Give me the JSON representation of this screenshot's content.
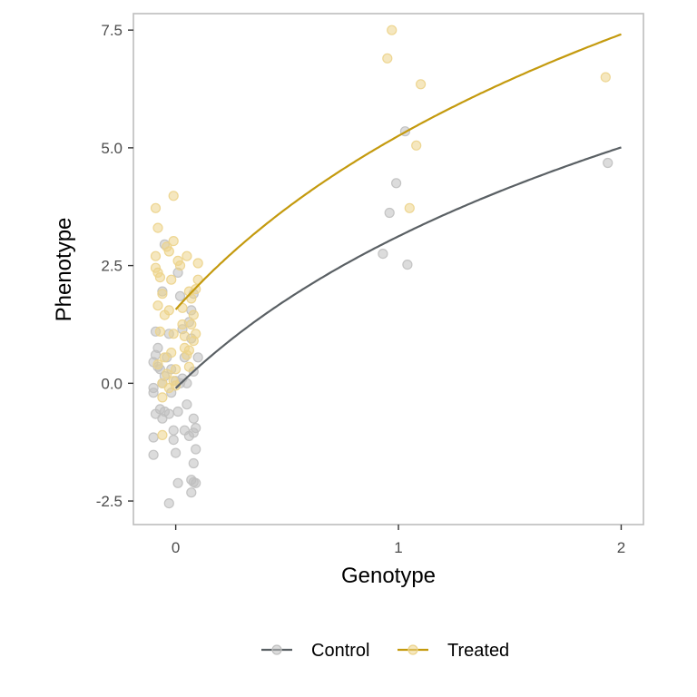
{
  "chart_data": {
    "type": "scatter",
    "title": "",
    "xlabel": "Genotype",
    "ylabel": "Phenotype",
    "xlim": [
      -0.19,
      2.1
    ],
    "ylim": [
      -3.0,
      7.85
    ],
    "x_ticks": [
      0,
      1,
      2
    ],
    "x_tick_labels": [
      "0",
      "1",
      "2"
    ],
    "y_ticks": [
      -2.5,
      0,
      2.5,
      5,
      7.5
    ],
    "y_tick_labels": [
      "-2.5",
      "0.0",
      "2.5",
      "5.0",
      "7.5"
    ],
    "grid": false,
    "legend_position": "bottom",
    "series": [
      {
        "name": "Control",
        "color": "#5a6064",
        "point_color": "#bfbfbf",
        "fit": "log",
        "points": [
          [
            -0.09,
            1.1
          ],
          [
            -0.09,
            0.6
          ],
          [
            -0.1,
            0.45
          ],
          [
            -0.08,
            0.35
          ],
          [
            -0.1,
            -0.1
          ],
          [
            -0.1,
            -0.2
          ],
          [
            -0.07,
            -0.55
          ],
          [
            -0.09,
            -0.65
          ],
          [
            -0.06,
            -0.75
          ],
          [
            -0.05,
            -0.6
          ],
          [
            -0.03,
            -0.65
          ],
          [
            -0.1,
            -1.15
          ],
          [
            -0.1,
            -1.52
          ],
          [
            -0.06,
            1.95
          ],
          [
            -0.05,
            2.95
          ],
          [
            -0.03,
            1.05
          ],
          [
            -0.04,
            0.55
          ],
          [
            -0.02,
            0.3
          ],
          [
            -0.05,
            0.15
          ],
          [
            -0.06,
            0.0
          ],
          [
            -0.02,
            -0.2
          ],
          [
            -0.01,
            -1.0
          ],
          [
            -0.01,
            -1.2
          ],
          [
            0.0,
            -1.48
          ],
          [
            -0.03,
            -2.55
          ],
          [
            0.01,
            -2.12
          ],
          [
            0.01,
            -0.6
          ],
          [
            0.02,
            0.0
          ],
          [
            0.03,
            0.1
          ],
          [
            0.04,
            0.55
          ],
          [
            0.03,
            1.15
          ],
          [
            0.02,
            1.85
          ],
          [
            0.01,
            2.35
          ],
          [
            0.05,
            -0.45
          ],
          [
            0.04,
            -1.0
          ],
          [
            0.06,
            -1.12
          ],
          [
            0.07,
            -2.05
          ],
          [
            0.07,
            -2.32
          ],
          [
            0.08,
            -2.1
          ],
          [
            0.09,
            -2.12
          ],
          [
            0.08,
            -1.7
          ],
          [
            0.09,
            -1.4
          ],
          [
            0.08,
            -1.05
          ],
          [
            0.09,
            -0.95
          ],
          [
            0.08,
            -0.75
          ],
          [
            0.08,
            0.25
          ],
          [
            0.1,
            0.55
          ],
          [
            0.07,
            0.95
          ],
          [
            0.06,
            1.3
          ],
          [
            0.07,
            1.55
          ],
          [
            0.08,
            1.9
          ],
          [
            0.05,
            0.0
          ],
          [
            0.0,
            0.05
          ],
          [
            -0.08,
            0.75
          ],
          [
            -0.07,
            0.3
          ],
          [
            0.93,
            2.75
          ],
          [
            0.96,
            3.62
          ],
          [
            0.99,
            4.25
          ],
          [
            1.03,
            5.35
          ],
          [
            1.04,
            2.52
          ],
          [
            1.94,
            4.68
          ]
        ]
      },
      {
        "name": "Treated",
        "color": "#c49a0e",
        "point_color": "#ecd38a",
        "fit": "log",
        "points": [
          [
            -0.09,
            3.72
          ],
          [
            -0.08,
            3.3
          ],
          [
            -0.09,
            2.7
          ],
          [
            -0.09,
            2.45
          ],
          [
            -0.08,
            2.35
          ],
          [
            -0.07,
            2.25
          ],
          [
            -0.08,
            1.65
          ],
          [
            -0.06,
            1.9
          ],
          [
            -0.05,
            1.45
          ],
          [
            -0.07,
            1.1
          ],
          [
            -0.05,
            0.55
          ],
          [
            -0.08,
            0.4
          ],
          [
            -0.04,
            0.2
          ],
          [
            -0.06,
            0.0
          ],
          [
            -0.03,
            -0.1
          ],
          [
            -0.06,
            -0.3
          ],
          [
            -0.06,
            -1.1
          ],
          [
            -0.04,
            2.9
          ],
          [
            -0.03,
            2.8
          ],
          [
            -0.01,
            3.98
          ],
          [
            -0.01,
            3.02
          ],
          [
            -0.02,
            2.2
          ],
          [
            -0.03,
            1.55
          ],
          [
            -0.01,
            1.05
          ],
          [
            -0.02,
            0.65
          ],
          [
            -0.01,
            0.05
          ],
          [
            0.0,
            -0.05
          ],
          [
            0.01,
            2.6
          ],
          [
            0.02,
            2.5
          ],
          [
            0.03,
            1.6
          ],
          [
            0.03,
            1.25
          ],
          [
            0.04,
            0.75
          ],
          [
            0.05,
            0.6
          ],
          [
            0.06,
            0.35
          ],
          [
            0.05,
            2.7
          ],
          [
            0.06,
            1.95
          ],
          [
            0.07,
            1.8
          ],
          [
            0.08,
            1.45
          ],
          [
            0.07,
            1.25
          ],
          [
            0.08,
            0.9
          ],
          [
            0.09,
            1.05
          ],
          [
            0.1,
            2.55
          ],
          [
            0.1,
            2.2
          ],
          [
            0.09,
            2.0
          ],
          [
            0.06,
            0.7
          ],
          [
            0.04,
            1.0
          ],
          [
            0.0,
            0.3
          ],
          [
            0.95,
            6.9
          ],
          [
            0.97,
            7.5
          ],
          [
            1.05,
            3.72
          ],
          [
            1.08,
            5.05
          ],
          [
            1.1,
            6.35
          ],
          [
            1.93,
            6.5
          ]
        ]
      }
    ]
  }
}
